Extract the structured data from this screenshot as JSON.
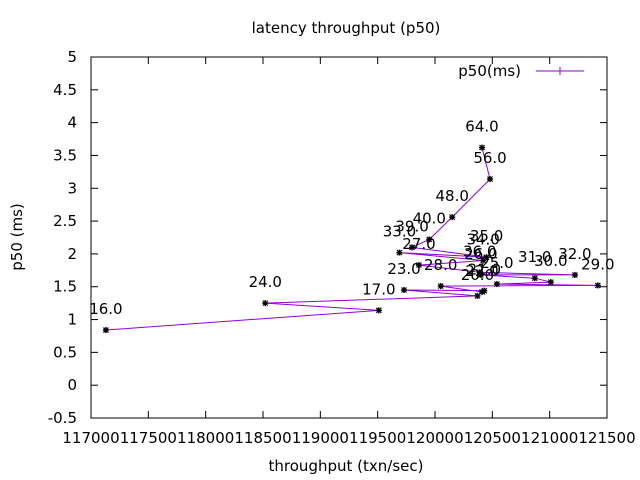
{
  "chart_data": {
    "type": "line",
    "title": "latency throughput (p50)",
    "xlabel": "throughput (txn/sec)",
    "ylabel": "p50 (ms)",
    "xlim": [
      117000,
      121500
    ],
    "ylim": [
      -0.5,
      5
    ],
    "xticks": [
      "117000",
      "117500",
      "118000",
      "118500",
      "119000",
      "119500",
      "120000",
      "120500",
      "121000",
      "121500"
    ],
    "yticks": [
      "-0.5",
      "0",
      "0.5",
      "1",
      "1.5",
      "2",
      "2.5",
      "3",
      "3.5",
      "4",
      "4.5",
      "5"
    ],
    "grid": false,
    "legend_position": "top-right",
    "series": [
      {
        "name": "p50(ms)",
        "color": "#9400d3",
        "points": [
          {
            "x": 117130,
            "y": 0.84,
            "label": "16.0"
          },
          {
            "x": 119510,
            "y": 1.14,
            "label": "17.0"
          },
          {
            "x": 118520,
            "y": 1.25,
            "label": "24.0"
          },
          {
            "x": 120370,
            "y": 1.36,
            "label": "20.0"
          },
          {
            "x": 119730,
            "y": 1.45,
            "label": "23.0"
          },
          {
            "x": 120430,
            "y": 1.44,
            "label": "21.0"
          },
          {
            "x": 120410,
            "y": 1.42,
            "label": "22.0"
          },
          {
            "x": 120050,
            "y": 1.51,
            "label": "28.0"
          },
          {
            "x": 121420,
            "y": 1.52,
            "label": "29.0"
          },
          {
            "x": 120540,
            "y": 1.54,
            "label": "25.0"
          },
          {
            "x": 121010,
            "y": 1.57,
            "label": "30.0"
          },
          {
            "x": 120870,
            "y": 1.63,
            "label": "31.0"
          },
          {
            "x": 120400,
            "y": 1.68,
            "label": "26.0"
          },
          {
            "x": 121220,
            "y": 1.68,
            "label": "32.0"
          },
          {
            "x": 120390,
            "y": 1.72,
            "label": "36.0"
          },
          {
            "x": 119860,
            "y": 1.83,
            "label": "27.0"
          },
          {
            "x": 120420,
            "y": 1.9,
            "label": "34.0"
          },
          {
            "x": 119690,
            "y": 2.02,
            "label": "33.0"
          },
          {
            "x": 120450,
            "y": 1.95,
            "label": "35.0"
          },
          {
            "x": 119800,
            "y": 2.1,
            "label": "39.0"
          },
          {
            "x": 119950,
            "y": 2.22,
            "label": "40.0"
          },
          {
            "x": 120150,
            "y": 2.56,
            "label": "48.0"
          },
          {
            "x": 120480,
            "y": 3.14,
            "label": "56.0"
          },
          {
            "x": 120410,
            "y": 3.62,
            "label": "64.0"
          }
        ]
      }
    ]
  }
}
